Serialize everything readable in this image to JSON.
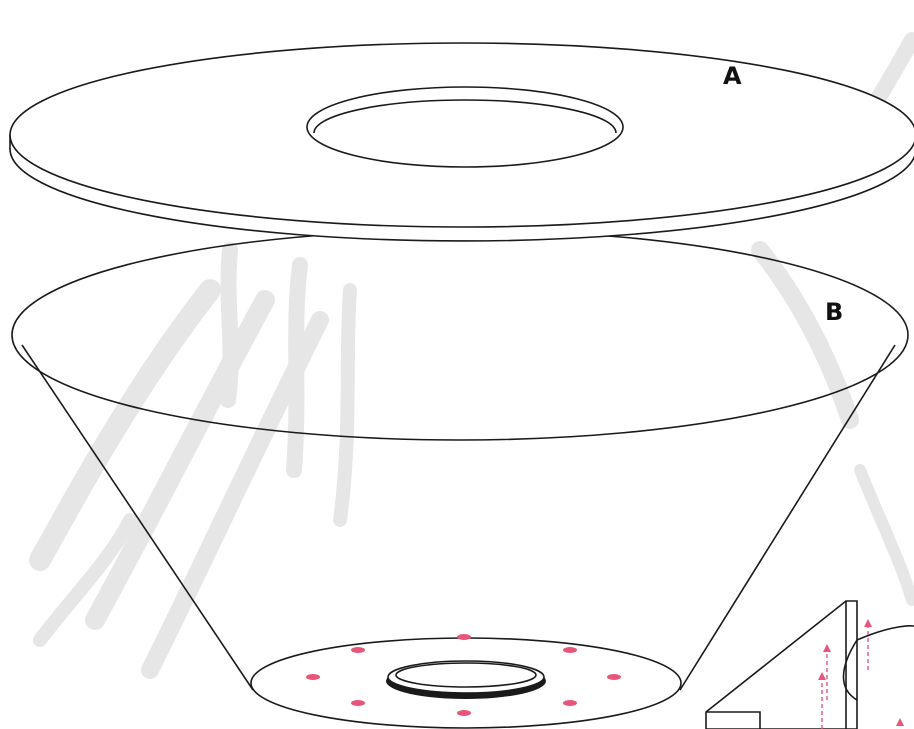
{
  "labels": {
    "part_a": "A",
    "part_b": "B"
  },
  "colors": {
    "line": "#1a1a1a",
    "marker": "#e8557a",
    "watermark": "#e6e6e6",
    "background": "#ffffff"
  },
  "base_plate": {
    "hole_marker_count": 8
  }
}
